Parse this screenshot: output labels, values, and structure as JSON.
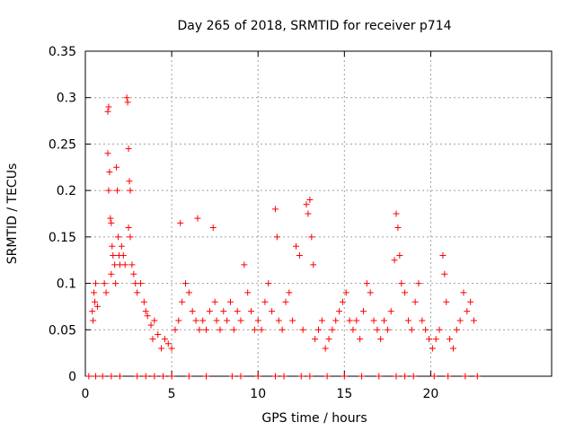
{
  "chart_data": {
    "type": "scatter",
    "title": "Day 265 of 2018, SRMTID for receiver p714",
    "xlabel": "GPS time / hours",
    "ylabel": "SRMTID / TECUs",
    "xlim": [
      0,
      27
    ],
    "ylim": [
      0,
      0.35
    ],
    "xticks": [
      0,
      5,
      10,
      15,
      20
    ],
    "yticks": [
      0,
      0.05,
      0.1,
      0.15,
      0.2,
      0.25,
      0.3,
      0.35
    ],
    "xtick_labels": [
      "0",
      "5",
      "10",
      "15",
      "20"
    ],
    "ytick_labels": [
      "0",
      "0.05",
      "0.1",
      "0.15",
      "0.2",
      "0.25",
      "0.3",
      "0.35"
    ],
    "grid": true,
    "marker": "+",
    "series": [
      {
        "name": "SRMTID",
        "color": "#ff0000",
        "points": [
          [
            0.4,
            0.07
          ],
          [
            0.5,
            0.09
          ],
          [
            0.45,
            0.06
          ],
          [
            0.6,
            0.1
          ],
          [
            0.55,
            0.08
          ],
          [
            0.7,
            0.075
          ],
          [
            1.1,
            0.1
          ],
          [
            1.2,
            0.09
          ],
          [
            1.3,
            0.285
          ],
          [
            1.35,
            0.29
          ],
          [
            1.3,
            0.24
          ],
          [
            1.4,
            0.22
          ],
          [
            1.35,
            0.2
          ],
          [
            1.45,
            0.17
          ],
          [
            1.5,
            0.165
          ],
          [
            1.55,
            0.14
          ],
          [
            1.6,
            0.13
          ],
          [
            1.5,
            0.11
          ],
          [
            1.7,
            0.12
          ],
          [
            1.75,
            0.1
          ],
          [
            1.8,
            0.225
          ],
          [
            1.85,
            0.2
          ],
          [
            1.9,
            0.15
          ],
          [
            1.95,
            0.13
          ],
          [
            2.0,
            0.12
          ],
          [
            2.1,
            0.14
          ],
          [
            2.2,
            0.13
          ],
          [
            2.3,
            0.12
          ],
          [
            2.4,
            0.3
          ],
          [
            2.45,
            0.295
          ],
          [
            2.5,
            0.245
          ],
          [
            2.55,
            0.21
          ],
          [
            2.6,
            0.2
          ],
          [
            2.5,
            0.16
          ],
          [
            2.6,
            0.15
          ],
          [
            2.7,
            0.12
          ],
          [
            2.8,
            0.11
          ],
          [
            2.9,
            0.1
          ],
          [
            3.0,
            0.09
          ],
          [
            3.2,
            0.1
          ],
          [
            3.4,
            0.08
          ],
          [
            3.5,
            0.07
          ],
          [
            3.6,
            0.065
          ],
          [
            3.8,
            0.055
          ],
          [
            3.9,
            0.04
          ],
          [
            4.0,
            0.06
          ],
          [
            4.2,
            0.045
          ],
          [
            4.4,
            0.03
          ],
          [
            4.6,
            0.04
          ],
          [
            4.8,
            0.035
          ],
          [
            5.0,
            0.03
          ],
          [
            5.2,
            0.05
          ],
          [
            5.4,
            0.06
          ],
          [
            5.5,
            0.165
          ],
          [
            5.6,
            0.08
          ],
          [
            5.8,
            0.1
          ],
          [
            6.0,
            0.09
          ],
          [
            6.2,
            0.07
          ],
          [
            6.4,
            0.06
          ],
          [
            6.5,
            0.17
          ],
          [
            6.6,
            0.05
          ],
          [
            6.8,
            0.06
          ],
          [
            7.0,
            0.05
          ],
          [
            7.2,
            0.07
          ],
          [
            7.4,
            0.16
          ],
          [
            7.5,
            0.08
          ],
          [
            7.6,
            0.06
          ],
          [
            7.8,
            0.05
          ],
          [
            8.0,
            0.07
          ],
          [
            8.2,
            0.06
          ],
          [
            8.4,
            0.08
          ],
          [
            8.6,
            0.05
          ],
          [
            8.8,
            0.07
          ],
          [
            9.0,
            0.06
          ],
          [
            9.2,
            0.12
          ],
          [
            9.4,
            0.09
          ],
          [
            9.6,
            0.07
          ],
          [
            9.8,
            0.05
          ],
          [
            10.0,
            0.06
          ],
          [
            10.2,
            0.05
          ],
          [
            10.4,
            0.08
          ],
          [
            10.6,
            0.1
          ],
          [
            10.8,
            0.07
          ],
          [
            11.0,
            0.18
          ],
          [
            11.1,
            0.15
          ],
          [
            11.2,
            0.06
          ],
          [
            11.4,
            0.05
          ],
          [
            11.6,
            0.08
          ],
          [
            11.8,
            0.09
          ],
          [
            12.0,
            0.06
          ],
          [
            12.2,
            0.14
          ],
          [
            12.4,
            0.13
          ],
          [
            12.6,
            0.05
          ],
          [
            12.8,
            0.185
          ],
          [
            12.9,
            0.175
          ],
          [
            13.0,
            0.19
          ],
          [
            13.1,
            0.15
          ],
          [
            13.2,
            0.12
          ],
          [
            13.3,
            0.04
          ],
          [
            13.5,
            0.05
          ],
          [
            13.7,
            0.06
          ],
          [
            13.9,
            0.03
          ],
          [
            14.1,
            0.04
          ],
          [
            14.3,
            0.05
          ],
          [
            14.5,
            0.06
          ],
          [
            14.7,
            0.07
          ],
          [
            14.9,
            0.08
          ],
          [
            15.1,
            0.09
          ],
          [
            15.3,
            0.06
          ],
          [
            15.5,
            0.05
          ],
          [
            15.7,
            0.06
          ],
          [
            15.9,
            0.04
          ],
          [
            16.1,
            0.07
          ],
          [
            16.3,
            0.1
          ],
          [
            16.5,
            0.09
          ],
          [
            16.7,
            0.06
          ],
          [
            16.9,
            0.05
          ],
          [
            17.1,
            0.04
          ],
          [
            17.3,
            0.06
          ],
          [
            17.5,
            0.05
          ],
          [
            17.7,
            0.07
          ],
          [
            17.9,
            0.125
          ],
          [
            18.0,
            0.175
          ],
          [
            18.1,
            0.16
          ],
          [
            18.2,
            0.13
          ],
          [
            18.3,
            0.1
          ],
          [
            18.5,
            0.09
          ],
          [
            18.7,
            0.06
          ],
          [
            18.9,
            0.05
          ],
          [
            19.1,
            0.08
          ],
          [
            19.3,
            0.1
          ],
          [
            19.5,
            0.06
          ],
          [
            19.7,
            0.05
          ],
          [
            19.9,
            0.04
          ],
          [
            20.1,
            0.03
          ],
          [
            20.3,
            0.04
          ],
          [
            20.5,
            0.05
          ],
          [
            20.7,
            0.13
          ],
          [
            20.8,
            0.11
          ],
          [
            20.9,
            0.08
          ],
          [
            21.1,
            0.04
          ],
          [
            21.3,
            0.03
          ],
          [
            21.5,
            0.05
          ],
          [
            21.7,
            0.06
          ],
          [
            21.9,
            0.09
          ],
          [
            22.1,
            0.07
          ],
          [
            22.3,
            0.08
          ],
          [
            22.5,
            0.06
          ],
          [
            0.2,
            0.0
          ],
          [
            0.6,
            0.0
          ],
          [
            1.0,
            0.0
          ],
          [
            1.5,
            0.0
          ],
          [
            2.0,
            0.0
          ],
          [
            3.0,
            0.0
          ],
          [
            3.5,
            0.0
          ],
          [
            4.0,
            0.0
          ],
          [
            4.5,
            0.0
          ],
          [
            5.0,
            0.0
          ],
          [
            6.0,
            0.0
          ],
          [
            7.0,
            0.0
          ],
          [
            8.5,
            0.0
          ],
          [
            9.0,
            0.0
          ],
          [
            10.0,
            0.0
          ],
          [
            11.0,
            0.0
          ],
          [
            11.5,
            0.0
          ],
          [
            12.5,
            0.0
          ],
          [
            13.0,
            0.0
          ],
          [
            14.0,
            0.0
          ],
          [
            15.0,
            0.0
          ],
          [
            16.0,
            0.0
          ],
          [
            17.0,
            0.0
          ],
          [
            18.0,
            0.0
          ],
          [
            18.5,
            0.0
          ],
          [
            19.0,
            0.0
          ],
          [
            20.2,
            0.0
          ],
          [
            21.0,
            0.0
          ],
          [
            22.0,
            0.0
          ],
          [
            22.7,
            0.0
          ]
        ]
      }
    ]
  }
}
